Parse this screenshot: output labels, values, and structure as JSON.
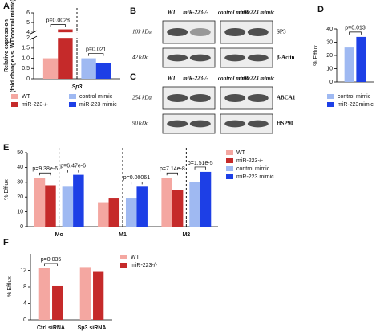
{
  "chart_data": [
    {
      "panel": "A",
      "type": "bar",
      "ylabel": [
        "Relative expression",
        "(fold change vs. WT/control mimic)"
      ],
      "categories": [
        "Sp3"
      ],
      "series": [
        {
          "name": "WT",
          "color": "#f4a7a1",
          "values": [
            1.0
          ]
        },
        {
          "name": "miR-223-/-",
          "color": "#c52a2a",
          "values": [
            4.3
          ]
        },
        {
          "name": "control mimic",
          "color": "#9fb9f2",
          "values": [
            1.0
          ]
        },
        {
          "name": "miR-223 mimic",
          "color": "#1d3fe6",
          "values": [
            0.75
          ]
        }
      ],
      "ylim": [
        0,
        6
      ],
      "y_break": [
        2,
        4
      ],
      "yticks": [
        0,
        0.5,
        {
          "value": 1,
          "label": "1.0"
        },
        1.5,
        2,
        4,
        5,
        6
      ],
      "annotations": [
        "p=0.0028",
        "p=0.021"
      ]
    },
    {
      "panel": "D",
      "type": "bar",
      "ylabel": [
        "% Efflux"
      ],
      "categories": [
        null
      ],
      "series": [
        {
          "name": "control mimic",
          "color": "#9fb9f2",
          "values": [
            26
          ]
        },
        {
          "name": "miR-223mimic",
          "color": "#1d3fe6",
          "values": [
            34
          ]
        }
      ],
      "ylim": [
        0,
        40
      ],
      "yticks": [
        0,
        10,
        20,
        30,
        40
      ],
      "annotations": [
        "p=0.013"
      ]
    },
    {
      "panel": "E",
      "type": "bar",
      "ylabel": [
        "% Efflux"
      ],
      "categories": [
        "Mo",
        "M1",
        "M2"
      ],
      "series": [
        {
          "name": "WT",
          "color": "#f4a7a1",
          "values": [
            33,
            16,
            33
          ]
        },
        {
          "name": "miR-223-/-",
          "color": "#c52a2a",
          "values": [
            28,
            19,
            25
          ]
        },
        {
          "name": "control mimic",
          "color": "#9fb9f2",
          "values": [
            27,
            19,
            30
          ]
        },
        {
          "name": "miR-223 mimic",
          "color": "#1d3fe6",
          "values": [
            35,
            27,
            37
          ]
        }
      ],
      "ylim": [
        0,
        50
      ],
      "yticks": [
        0,
        10,
        20,
        30,
        40,
        50
      ],
      "annotations": [
        "p=9.38e-6",
        "p=6.47e-6",
        "p=0.00061",
        "p=7.14e-8",
        "p=1.51e-5"
      ]
    },
    {
      "panel": "F",
      "type": "bar",
      "ylabel": [
        "% Efflux"
      ],
      "categories": [
        "Ctrl siRNA",
        "Sp3 siRNA"
      ],
      "series": [
        {
          "name": "WT",
          "color": "#f4a7a1",
          "values": [
            12.5,
            12.8
          ]
        },
        {
          "name": "miR-223-/-",
          "color": "#c52a2a",
          "values": [
            8.2,
            11.8
          ]
        }
      ],
      "ylim": [
        0,
        16
      ],
      "yticks": [
        0,
        4,
        8,
        12
      ],
      "annotations": [
        "p=0.035"
      ]
    }
  ],
  "blots": [
    {
      "panel": "B",
      "columns": [
        "WT",
        "miR-223-/-",
        "control mimic",
        "miR-223 mimic"
      ],
      "rows": [
        {
          "size": "103 kDa",
          "protein": "SP3"
        },
        {
          "size": "42 kDa",
          "protein": "β-Actin"
        }
      ]
    },
    {
      "panel": "C",
      "columns": [
        "WT",
        "miR-223-/-",
        "control mimic",
        "miR-223 mimic"
      ],
      "rows": [
        {
          "size": "254 kDa",
          "protein": "ABCA1"
        },
        {
          "size": "90 kDa",
          "protein": "HSP90"
        }
      ]
    }
  ]
}
